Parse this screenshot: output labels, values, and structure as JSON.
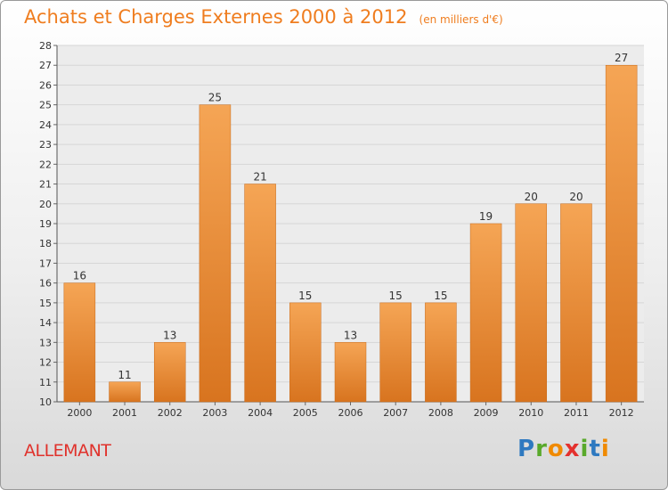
{
  "title": "Achats et Charges Externes 2000 à 2012",
  "unit_note": "(en milliers d'€)",
  "commune": "ALLEMANT",
  "logo": {
    "text": "Proxiti",
    "letter_colors": [
      "#2e79c0",
      "#59a92b",
      "#f08a00",
      "#e4312e",
      "#59a92b",
      "#2e79c0",
      "#f08a00"
    ]
  },
  "colors": {
    "accent": "#ef7d1f",
    "commune": "#e0322c",
    "bar_light": "#f5a555",
    "bar_dark": "#d8741f"
  },
  "chart_data": {
    "type": "bar",
    "categories": [
      "2000",
      "2001",
      "2002",
      "2003",
      "2004",
      "2005",
      "2006",
      "2007",
      "2008",
      "2009",
      "2010",
      "2011",
      "2012"
    ],
    "values": [
      16,
      11,
      13,
      25,
      21,
      15,
      13,
      15,
      15,
      19,
      20,
      20,
      27
    ],
    "ylim": [
      10,
      28
    ],
    "yticks": [
      10,
      11,
      12,
      13,
      14,
      15,
      16,
      17,
      18,
      19,
      20,
      21,
      22,
      23,
      24,
      25,
      26,
      27,
      28
    ],
    "grid": true,
    "legend": "none"
  }
}
